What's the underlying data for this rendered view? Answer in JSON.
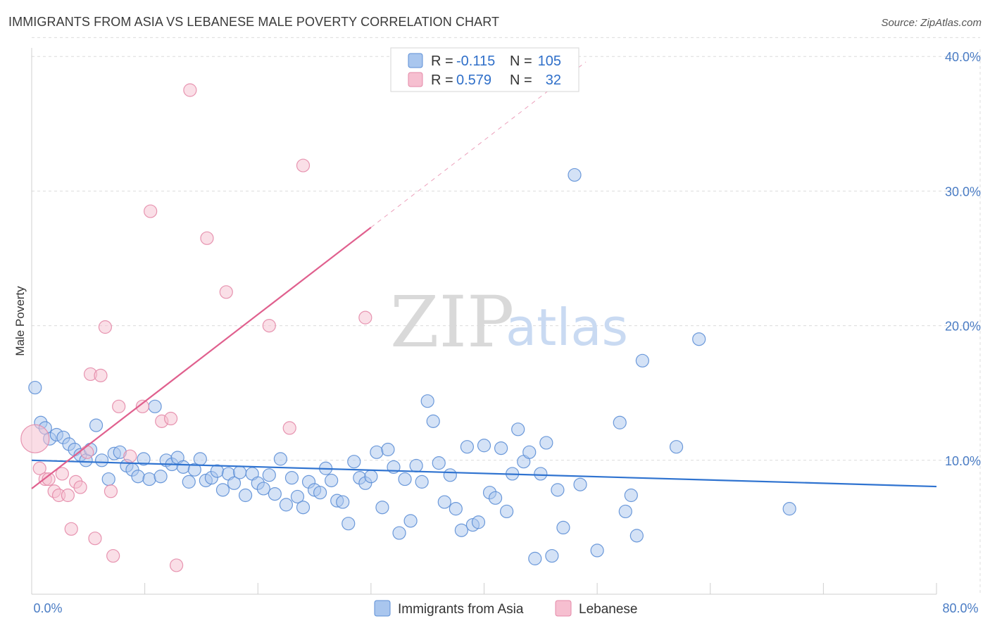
{
  "header": {
    "title": "IMMIGRANTS FROM ASIA VS LEBANESE MALE POVERTY CORRELATION CHART",
    "source": "Source: ZipAtlas.com"
  },
  "watermark": {
    "zip": "ZIP",
    "atlas": "atlas"
  },
  "colors": {
    "blue_fill": "#a9c6ee",
    "blue_stroke": "#5d8fd6",
    "blue_line": "#2f73d0",
    "pink_fill": "#f6bfd0",
    "pink_stroke": "#e48aa8",
    "pink_line": "#e0608e",
    "tick_text": "#4a7cc4"
  },
  "legend": {
    "r_label": "R =",
    "n_label": "N =",
    "rows": [
      {
        "r": "-0.115",
        "n": "105"
      },
      {
        "r": "0.579",
        "n": "32"
      }
    ]
  },
  "chart_data": {
    "type": "scatter",
    "title": "IMMIGRANTS FROM ASIA VS LEBANESE MALE POVERTY CORRELATION CHART",
    "xlabel": "",
    "ylabel": "Male Poverty",
    "xlim": [
      0,
      80
    ],
    "ylim": [
      0,
      42
    ],
    "x_tick_labels": [
      "0.0%",
      "80.0%"
    ],
    "y_ticks": [
      10,
      20,
      30,
      40
    ],
    "y_tick_labels": [
      "10.0%",
      "20.0%",
      "30.0%",
      "40.0%"
    ],
    "grid": true,
    "legend_position": "top-center",
    "series": [
      {
        "name": "Immigrants from Asia",
        "r": -0.115,
        "n": 105,
        "trend": {
          "x": [
            0,
            80
          ],
          "y": [
            10.0,
            8.05
          ]
        },
        "points": [
          [
            0.3,
            15.4
          ],
          [
            0.8,
            12.8
          ],
          [
            1.2,
            12.4
          ],
          [
            1.6,
            11.6
          ],
          [
            2.2,
            11.9
          ],
          [
            2.8,
            11.7
          ],
          [
            3.3,
            11.2
          ],
          [
            3.8,
            10.8
          ],
          [
            4.3,
            10.4
          ],
          [
            4.8,
            10.0
          ],
          [
            5.2,
            10.8
          ],
          [
            5.7,
            12.6
          ],
          [
            6.2,
            10.0
          ],
          [
            6.8,
            8.6
          ],
          [
            7.3,
            10.5
          ],
          [
            7.8,
            10.6
          ],
          [
            8.4,
            9.6
          ],
          [
            8.9,
            9.3
          ],
          [
            9.4,
            8.8
          ],
          [
            9.9,
            10.1
          ],
          [
            10.4,
            8.6
          ],
          [
            10.9,
            14.0
          ],
          [
            11.4,
            8.8
          ],
          [
            11.9,
            10.0
          ],
          [
            12.4,
            9.7
          ],
          [
            12.9,
            10.2
          ],
          [
            13.4,
            9.5
          ],
          [
            13.9,
            8.4
          ],
          [
            14.4,
            9.3
          ],
          [
            14.9,
            10.1
          ],
          [
            15.4,
            8.5
          ],
          [
            15.9,
            8.7
          ],
          [
            16.4,
            9.2
          ],
          [
            16.9,
            7.8
          ],
          [
            17.4,
            9.0
          ],
          [
            17.9,
            8.3
          ],
          [
            18.4,
            9.1
          ],
          [
            18.9,
            7.4
          ],
          [
            19.5,
            9.0
          ],
          [
            20.0,
            8.3
          ],
          [
            20.5,
            7.9
          ],
          [
            21.0,
            8.9
          ],
          [
            21.5,
            7.5
          ],
          [
            22.0,
            10.1
          ],
          [
            22.5,
            6.7
          ],
          [
            23.0,
            8.7
          ],
          [
            23.5,
            7.3
          ],
          [
            24.0,
            6.5
          ],
          [
            24.5,
            8.4
          ],
          [
            25.0,
            7.8
          ],
          [
            25.5,
            7.6
          ],
          [
            26.0,
            9.4
          ],
          [
            26.5,
            8.5
          ],
          [
            27.0,
            7.0
          ],
          [
            27.5,
            6.9
          ],
          [
            28.0,
            5.3
          ],
          [
            28.5,
            9.9
          ],
          [
            29.0,
            8.7
          ],
          [
            29.5,
            8.3
          ],
          [
            30.0,
            8.8
          ],
          [
            30.5,
            10.6
          ],
          [
            31.0,
            6.5
          ],
          [
            31.5,
            10.8
          ],
          [
            32.0,
            9.5
          ],
          [
            32.5,
            4.6
          ],
          [
            33.0,
            8.6
          ],
          [
            33.5,
            5.5
          ],
          [
            34.0,
            9.6
          ],
          [
            34.5,
            8.4
          ],
          [
            35.0,
            14.4
          ],
          [
            35.5,
            12.9
          ],
          [
            36.0,
            9.8
          ],
          [
            36.5,
            6.9
          ],
          [
            37.0,
            8.9
          ],
          [
            37.5,
            6.4
          ],
          [
            38.0,
            4.8
          ],
          [
            38.5,
            11.0
          ],
          [
            39.0,
            5.2
          ],
          [
            39.5,
            5.4
          ],
          [
            40.0,
            11.1
          ],
          [
            40.5,
            7.6
          ],
          [
            41.0,
            7.2
          ],
          [
            41.5,
            10.9
          ],
          [
            42.0,
            6.2
          ],
          [
            42.5,
            9.0
          ],
          [
            43.0,
            12.3
          ],
          [
            43.5,
            9.9
          ],
          [
            44.0,
            10.6
          ],
          [
            44.5,
            2.7
          ],
          [
            45.0,
            9.0
          ],
          [
            45.5,
            11.3
          ],
          [
            46.0,
            2.9
          ],
          [
            46.5,
            7.8
          ],
          [
            47.0,
            5.0
          ],
          [
            48.0,
            31.2
          ],
          [
            48.5,
            8.2
          ],
          [
            50.0,
            3.3
          ],
          [
            52.0,
            12.8
          ],
          [
            52.5,
            6.2
          ],
          [
            53.0,
            7.4
          ],
          [
            53.5,
            4.4
          ],
          [
            54.0,
            17.4
          ],
          [
            57.0,
            11.0
          ],
          [
            59.0,
            19.0
          ],
          [
            67.0,
            6.4
          ]
        ]
      },
      {
        "name": "Lebanese",
        "r": 0.579,
        "n": 32,
        "trend": {
          "x": [
            0,
            30
          ],
          "y": [
            7.9,
            27.3
          ]
        },
        "trend_dashed": {
          "x": [
            30,
            49
          ],
          "y": [
            27.3,
            39.6
          ]
        },
        "points": [
          [
            0.3,
            11.6
          ],
          [
            0.7,
            9.4
          ],
          [
            1.2,
            8.6
          ],
          [
            1.5,
            8.6
          ],
          [
            2.0,
            7.7
          ],
          [
            2.4,
            7.4
          ],
          [
            2.7,
            9.0
          ],
          [
            3.2,
            7.4
          ],
          [
            3.5,
            4.9
          ],
          [
            3.9,
            8.4
          ],
          [
            4.3,
            8.0
          ],
          [
            4.9,
            10.6
          ],
          [
            5.2,
            16.4
          ],
          [
            5.6,
            4.2
          ],
          [
            6.1,
            16.3
          ],
          [
            6.5,
            19.9
          ],
          [
            7.0,
            7.7
          ],
          [
            7.2,
            2.9
          ],
          [
            7.7,
            14.0
          ],
          [
            8.7,
            10.3
          ],
          [
            9.8,
            14.0
          ],
          [
            10.5,
            28.5
          ],
          [
            11.5,
            12.9
          ],
          [
            12.3,
            13.1
          ],
          [
            12.8,
            2.2
          ],
          [
            14.0,
            37.5
          ],
          [
            15.5,
            26.5
          ],
          [
            17.2,
            22.5
          ],
          [
            21.0,
            20.0
          ],
          [
            22.8,
            12.4
          ],
          [
            24.0,
            31.9
          ],
          [
            29.5,
            20.6
          ]
        ]
      }
    ]
  }
}
